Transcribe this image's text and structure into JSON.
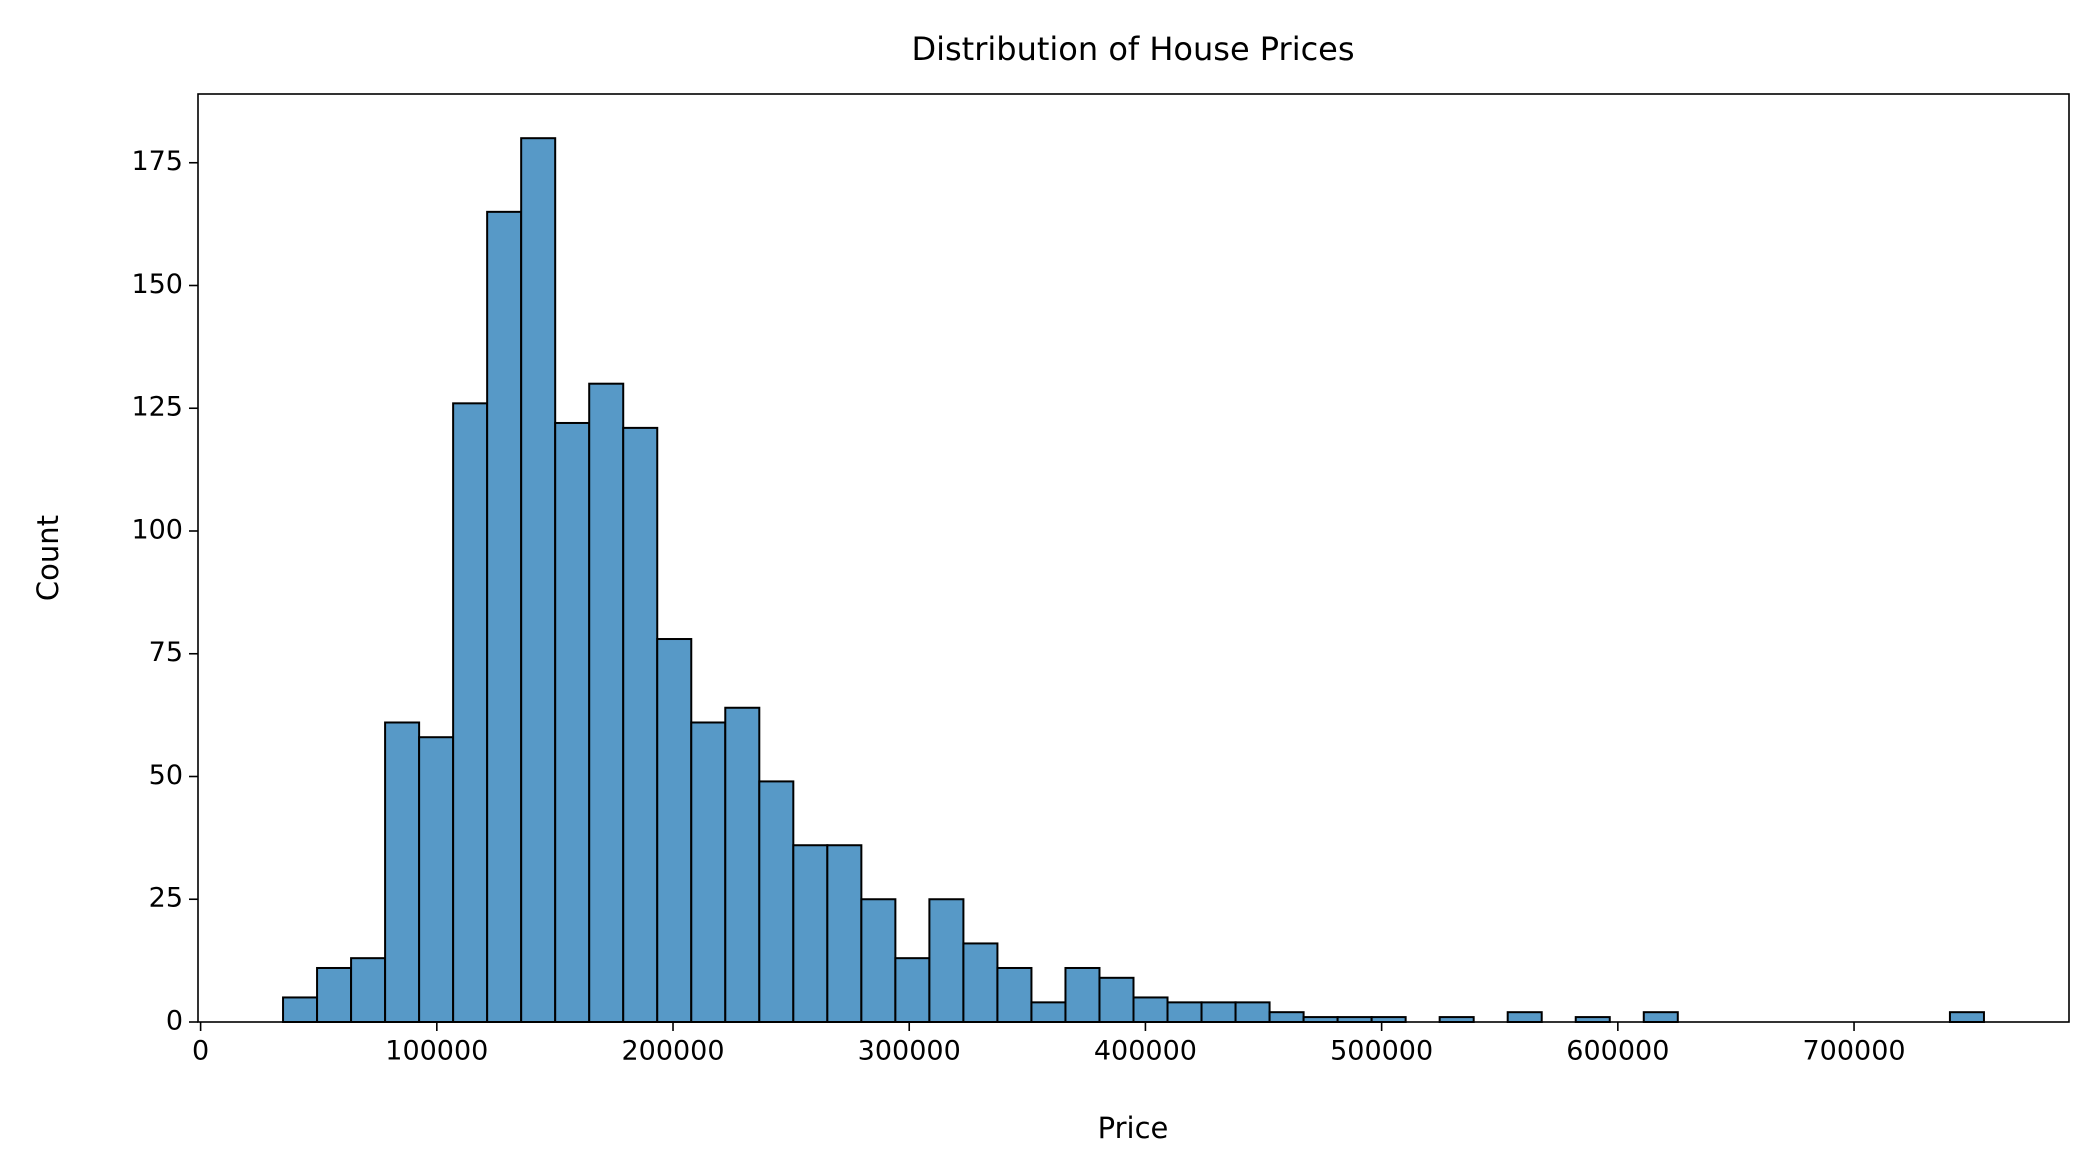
{
  "chart_data": {
    "type": "histogram",
    "title": "Distribution of House Prices",
    "x_label": "Price",
    "y_label": "Count",
    "color": "#5799c7",
    "edgecolor": "#000000",
    "bins": [
      34900,
      49302,
      63704,
      78106,
      92508,
      106910,
      121312,
      135714,
      150116,
      164518,
      178920,
      193322,
      207724,
      222126,
      236528,
      250930,
      265332,
      279734,
      294136,
      308538,
      322940,
      337342,
      351744,
      366146,
      380548,
      394950,
      409352,
      423754,
      438156,
      452558,
      466960,
      481362,
      495764,
      510166,
      524568,
      538970,
      553372,
      567774,
      582176,
      596578,
      610980,
      625382,
      639784,
      654186,
      668588,
      682990,
      697392,
      711794,
      726196,
      740598,
      755000
    ],
    "counts": [
      5,
      11,
      13,
      61,
      58,
      126,
      165,
      180,
      122,
      130,
      121,
      78,
      61,
      64,
      49,
      36,
      36,
      25,
      13,
      25,
      16,
      11,
      4,
      11,
      9,
      5,
      4,
      4,
      4,
      2,
      1,
      1,
      1,
      0,
      1,
      0,
      2,
      0,
      1,
      0,
      2,
      0,
      0,
      0,
      0,
      0,
      0,
      0,
      0,
      2
    ],
    "xlim": [
      -1105,
      791005
    ],
    "ylim": [
      0,
      189
    ],
    "xticks": [
      0,
      100000,
      200000,
      300000,
      400000,
      500000,
      600000,
      700000
    ],
    "yticks": [
      0,
      25,
      50,
      75,
      100,
      125,
      150,
      175
    ],
    "grid": false
  }
}
